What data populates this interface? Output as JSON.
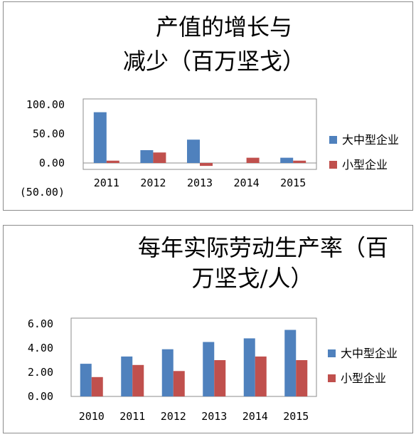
{
  "colors": {
    "large": "#4f81bd",
    "small": "#c0504d",
    "negative_tick": "#ff0000"
  },
  "chart_data": [
    {
      "type": "bar",
      "title_lines": [
        "产值的增长与",
        "减少（百万坚戈）"
      ],
      "categories": [
        "2011",
        "2012",
        "2013",
        "2014",
        "2015"
      ],
      "series": [
        {
          "name": "大中型企业",
          "values": [
            87,
            22,
            40,
            0,
            9
          ]
        },
        {
          "name": "小型企业",
          "values": [
            4,
            18,
            -5,
            9,
            4
          ]
        }
      ],
      "y_ticks": [
        "100.00",
        "50.00",
        "0.00",
        "(50.00)"
      ],
      "ylim": [
        -50,
        100
      ],
      "legend_position": "right"
    },
    {
      "type": "bar",
      "title_lines": [
        "每年实际劳动生产率（百",
        "万坚戈/人）"
      ],
      "categories": [
        "2010",
        "2011",
        "2012",
        "2013",
        "2014",
        "2015"
      ],
      "series": [
        {
          "name": "大中型企业",
          "values": [
            2.7,
            3.3,
            3.9,
            4.5,
            4.8,
            5.5
          ]
        },
        {
          "name": "小型企业",
          "values": [
            1.6,
            2.6,
            2.1,
            3.0,
            3.3,
            3.0
          ]
        }
      ],
      "y_ticks": [
        "6.00",
        "4.00",
        "2.00",
        "0.00"
      ],
      "ylim": [
        0,
        6
      ],
      "legend_position": "right"
    }
  ]
}
